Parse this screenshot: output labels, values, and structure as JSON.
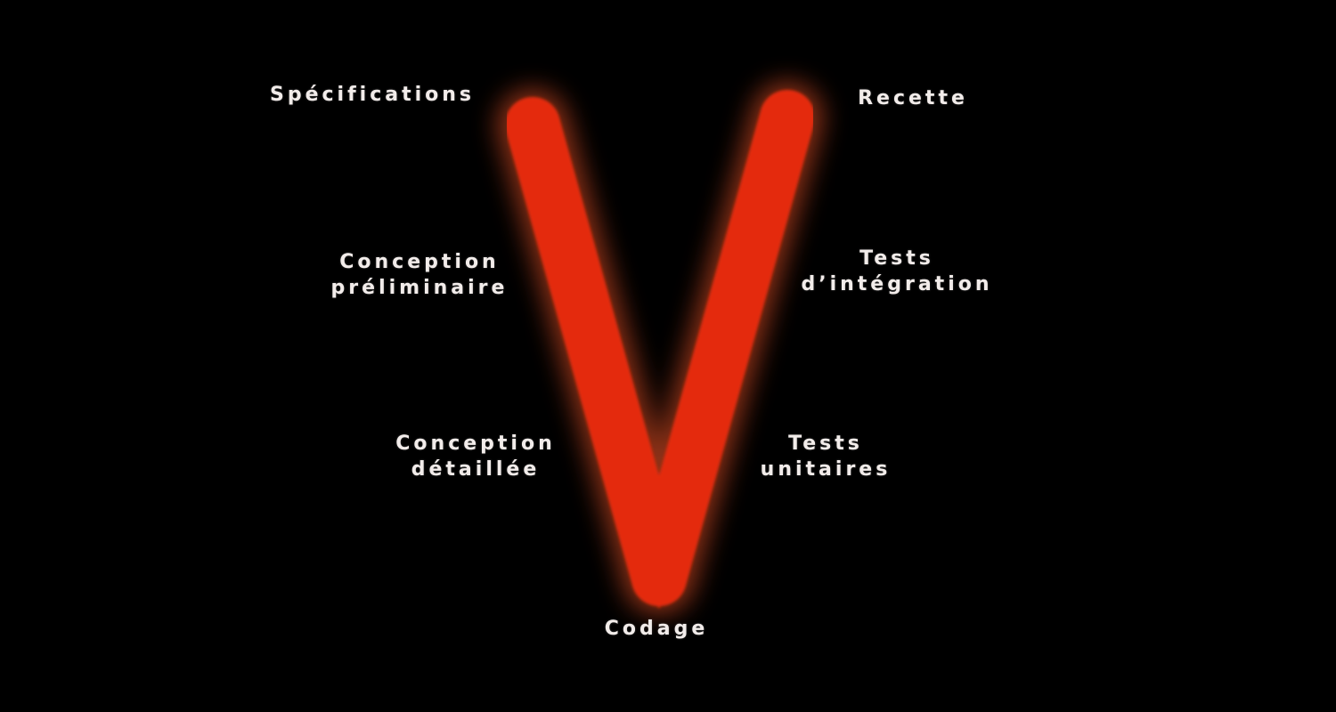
{
  "diagram": {
    "shape": "V",
    "stroke_color": "#e42a0c",
    "glow_color": "#ff5a2a",
    "background_color": "#000000",
    "label_color": "#f2ecea",
    "left_branch": [
      {
        "lines": [
          "Spécifications"
        ]
      },
      {
        "lines": [
          "Conception",
          "préliminaire"
        ]
      },
      {
        "lines": [
          "Conception",
          "détaillée"
        ]
      }
    ],
    "bottom": {
      "lines": [
        "Codage"
      ]
    },
    "right_branch": [
      {
        "lines": [
          "Recette"
        ]
      },
      {
        "lines": [
          "Tests",
          "d’intégration"
        ]
      },
      {
        "lines": [
          "Tests",
          "unitaires"
        ]
      }
    ]
  }
}
